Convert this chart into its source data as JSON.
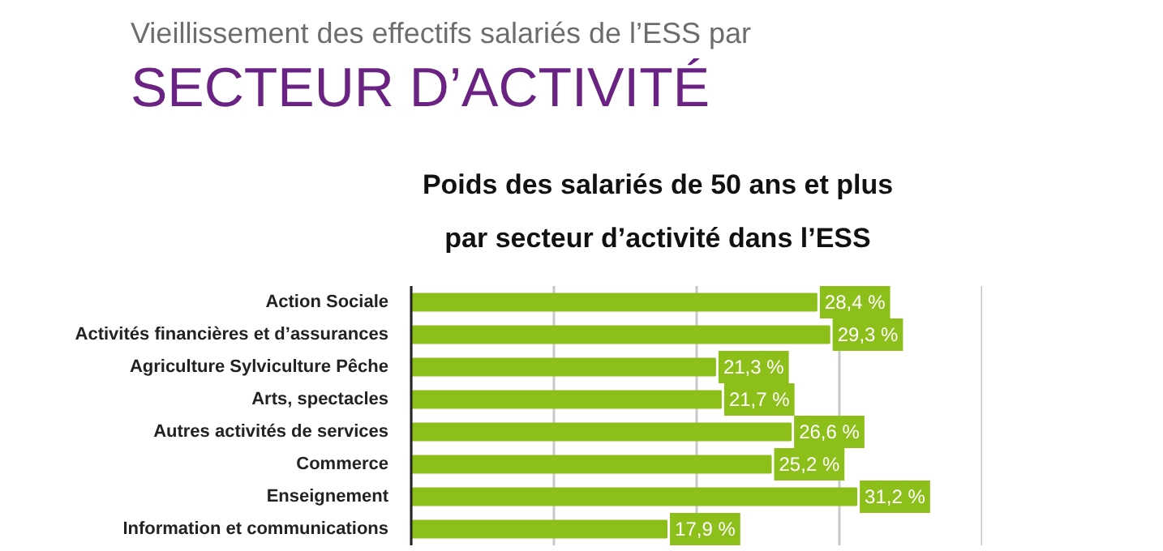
{
  "chart_data": {
    "type": "bar",
    "orientation": "horizontal",
    "title": "Vieillissement des effectifs salariés de l’ESS par",
    "subtitle": "SECTEUR D’ACTIVITÉ",
    "annotations": [
      "Poids des salariés de 50 ans et plus\npar secteur d’activité dans l’ESS"
    ],
    "categories": [
      "Action Sociale",
      "Activités financières et d’assurances",
      "Agriculture Sylviculture Pêche",
      "Arts, spectacles",
      "Autres activités de services",
      "Commerce",
      "Enseignement",
      "Information et communications"
    ],
    "values": [
      28.4,
      29.3,
      21.3,
      21.7,
      26.6,
      25.2,
      31.2,
      17.9
    ],
    "value_labels": [
      "28,4 %",
      "29,3 %",
      "21,3 %",
      "21,7 %",
      "26,6 %",
      "25,2 %",
      "31,2 %",
      "17,9 %"
    ],
    "color": "#8dbf1a",
    "xlim": [
      0,
      40
    ],
    "xticks": [
      {
        "value": 0,
        "label": null
      },
      {
        "value": 10,
        "label": null
      },
      {
        "value": 20,
        "label": null
      },
      {
        "value": 30,
        "label": null
      },
      {
        "value": 40,
        "label": null
      }
    ],
    "grid": "x",
    "tick_labels": "y"
  }
}
